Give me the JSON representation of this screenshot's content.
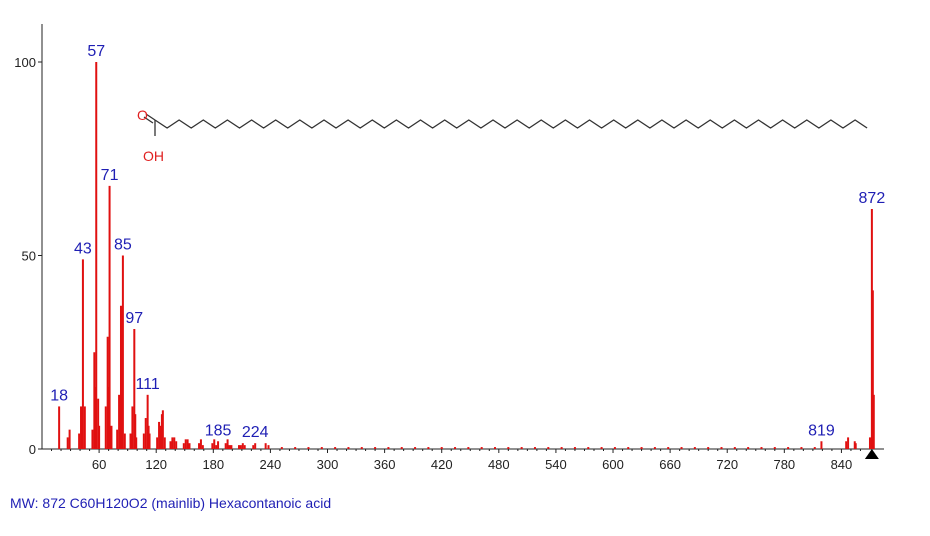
{
  "caption": "MW: 872 C60H120O2 (mainlib) Hexacontanoic acid",
  "colors": {
    "peaks": "#e01010",
    "peak_labels": "#1f1fb4",
    "axes": "#222222",
    "structure_bonds": "#333333",
    "heteroatoms": "#e02020"
  },
  "structure": {
    "carbonyl_oxygen": "O",
    "hydroxyl": "OH"
  },
  "chart_data": {
    "type": "bar",
    "title": "",
    "xlabel": "",
    "ylabel": "",
    "xlim": [
      0,
      870
    ],
    "ylim": [
      0,
      100
    ],
    "x_ticks": [
      60,
      120,
      180,
      240,
      300,
      360,
      420,
      480,
      540,
      600,
      660,
      720,
      780,
      840
    ],
    "y_ticks": [
      0,
      50,
      100
    ],
    "grid": false,
    "series": [
      {
        "x": [
          18,
          27,
          29,
          39,
          41,
          43,
          45,
          53,
          55,
          56,
          57,
          59,
          60,
          67,
          69,
          70,
          71,
          73,
          79,
          81,
          83,
          84,
          85,
          87,
          93,
          95,
          97,
          98,
          99,
          107,
          109,
          111,
          112,
          113,
          121,
          123,
          125,
          126,
          127,
          129,
          135,
          137,
          139,
          141,
          149,
          151,
          153,
          155,
          165,
          167,
          169,
          179,
          181,
          183,
          185,
          193,
          195,
          197,
          199,
          207,
          209,
          211,
          213,
          222,
          224,
          235,
          238,
          252,
          266,
          280,
          294,
          308,
          322,
          336,
          350,
          364,
          378,
          392,
          406,
          420,
          434,
          448,
          462,
          476,
          490,
          504,
          518,
          532,
          546,
          560,
          574,
          588,
          602,
          616,
          630,
          644,
          658,
          672,
          686,
          700,
          714,
          728,
          742,
          756,
          770,
          784,
          798,
          812,
          819,
          845,
          847,
          854,
          855,
          870,
          872,
          873,
          874
        ],
        "values": [
          11,
          3,
          5,
          4,
          11,
          49,
          11,
          5,
          25,
          16,
          100,
          13,
          6,
          11,
          29,
          16,
          68,
          6,
          5,
          14,
          37,
          13,
          50,
          4,
          4,
          11,
          31,
          9,
          3,
          4,
          8,
          14,
          6,
          4,
          3,
          7,
          6,
          9,
          10,
          3,
          2,
          3,
          3,
          2,
          1.5,
          2.5,
          2.5,
          1.5,
          1.5,
          2.5,
          1,
          1.5,
          2.5,
          1,
          2,
          1.5,
          2.5,
          1,
          1,
          1,
          1,
          1.5,
          1,
          1,
          1.5,
          1.5,
          1,
          0.5,
          0.5,
          0.5,
          0.5,
          0.5,
          0.5,
          0.5,
          0.5,
          0.5,
          0.5,
          0.5,
          0.5,
          0.5,
          0.5,
          0.5,
          0.5,
          0.5,
          0.5,
          0.5,
          0.5,
          0.5,
          0.5,
          0.5,
          0.5,
          0.5,
          0.5,
          0.5,
          0.5,
          0.5,
          0.5,
          0.5,
          0.5,
          0.5,
          0.5,
          0.5,
          0.5,
          0.5,
          0.5,
          0.5,
          0.5,
          0.5,
          2,
          2,
          3,
          2,
          1.5,
          3,
          62,
          41,
          14
        ]
      }
    ],
    "peak_labels": [
      {
        "x": 18,
        "y": 11,
        "text": "18"
      },
      {
        "x": 43,
        "y": 49,
        "text": "43"
      },
      {
        "x": 57,
        "y": 100,
        "text": "57"
      },
      {
        "x": 71,
        "y": 68,
        "text": "71"
      },
      {
        "x": 85,
        "y": 50,
        "text": "85"
      },
      {
        "x": 97,
        "y": 31,
        "text": "97"
      },
      {
        "x": 111,
        "y": 14,
        "text": "111"
      },
      {
        "x": 185,
        "y": 2,
        "text": "185"
      },
      {
        "x": 224,
        "y": 1.5,
        "text": "224"
      },
      {
        "x": 819,
        "y": 2,
        "text": "819"
      },
      {
        "x": 872,
        "y": 62,
        "text": "872"
      }
    ],
    "molecular_ion_marker": 872
  }
}
